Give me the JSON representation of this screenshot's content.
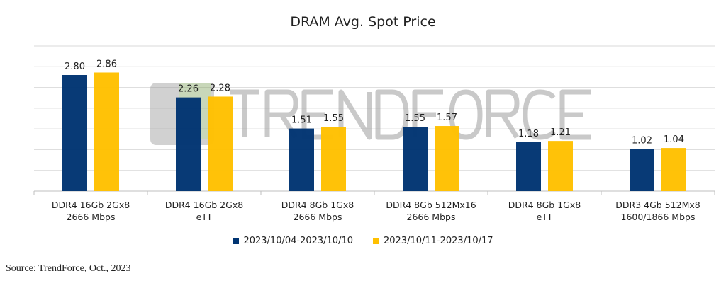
{
  "chart_data": {
    "type": "bar",
    "title": "DRAM Avg. Spot Price",
    "categories": [
      [
        "DDR4 16Gb 2Gx8",
        "2666 Mbps"
      ],
      [
        "DDR4 16Gb 2Gx8",
        "eTT"
      ],
      [
        "DDR4 8Gb 1Gx8",
        "2666 Mbps"
      ],
      [
        "DDR4 8Gb 512Mx16",
        "2666 Mbps"
      ],
      [
        "DDR4 8Gb 1Gx8",
        "eTT"
      ],
      [
        "DDR3 4Gb 512Mx8",
        "1600/1866 Mbps"
      ]
    ],
    "series": [
      {
        "name": "2023/10/04-2023/10/10",
        "color": "#003472",
        "values": [
          2.8,
          2.26,
          1.51,
          1.55,
          1.18,
          1.02
        ]
      },
      {
        "name": "2023/10/11-2023/10/17",
        "color": "#FFC000",
        "values": [
          2.86,
          2.28,
          1.55,
          1.57,
          1.21,
          1.04
        ]
      }
    ],
    "ylim": [
      0,
      3.5
    ],
    "grid_step": 0.5,
    "grid": true,
    "y_tick_labels_shown": false,
    "legend_position": "bottom",
    "xlabel": "",
    "ylabel": ""
  },
  "source": "Source: TrendForce, Oct., 2023",
  "watermark": "TRENDFORCE"
}
